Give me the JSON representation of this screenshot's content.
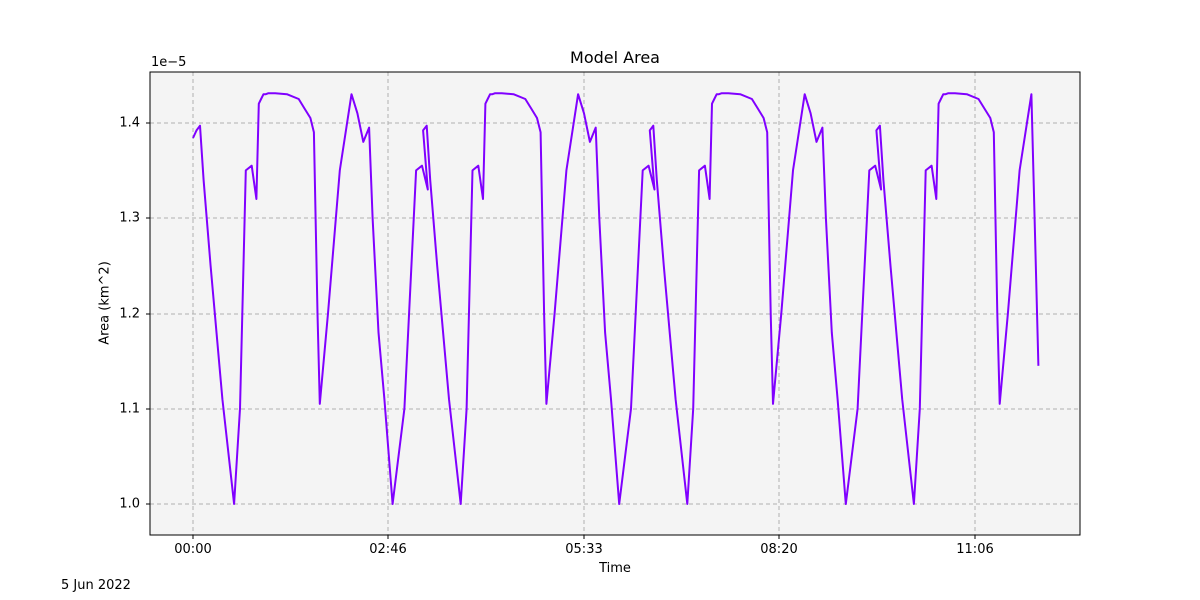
{
  "chart_data": {
    "type": "line",
    "title": "Model Area",
    "xlabel": "Time",
    "ylabel": "Area (km^2)",
    "y_offset_label": "1e−5",
    "date_label": "5 Jun 2022",
    "x_tick_labels": [
      "00:00",
      "02:46",
      "05:33",
      "08:20",
      "11:06"
    ],
    "y_tick_labels": [
      "1.0",
      "1.1",
      "1.2",
      "1.3",
      "1.4"
    ],
    "ylim": [
      9.7e-06,
      1.455e-05
    ],
    "grid": true,
    "line_color": "#8000ff",
    "background_color": "#f4f4f4",
    "series": [
      {
        "name": "Model Area",
        "x_minutes": [
          0,
          3,
          6,
          9,
          15,
          25,
          35,
          40,
          45,
          50,
          54,
          56,
          58,
          60,
          62,
          64,
          70,
          80,
          90,
          95,
          100,
          103,
          106,
          108,
          115,
          125,
          135,
          140,
          145,
          150,
          153,
          158,
          163,
          170,
          180,
          190,
          195,
          200
        ],
        "values_e5": [
          1.384,
          1.392,
          1.397,
          1.34,
          1.25,
          1.11,
          1.0,
          1.1,
          1.35,
          1.355,
          1.32,
          1.42,
          1.425,
          1.43,
          1.43,
          1.431,
          1.431,
          1.43,
          1.425,
          1.415,
          1.405,
          1.39,
          1.2,
          1.105,
          1.2,
          1.35,
          1.43,
          1.41,
          1.38,
          1.395,
          1.3,
          1.18,
          1.11,
          1.0,
          1.1,
          1.35,
          1.355,
          1.33
        ]
      }
    ],
    "period_minutes": 193,
    "min_value_e5": 0.992,
    "max_value_e5": 1.432
  }
}
